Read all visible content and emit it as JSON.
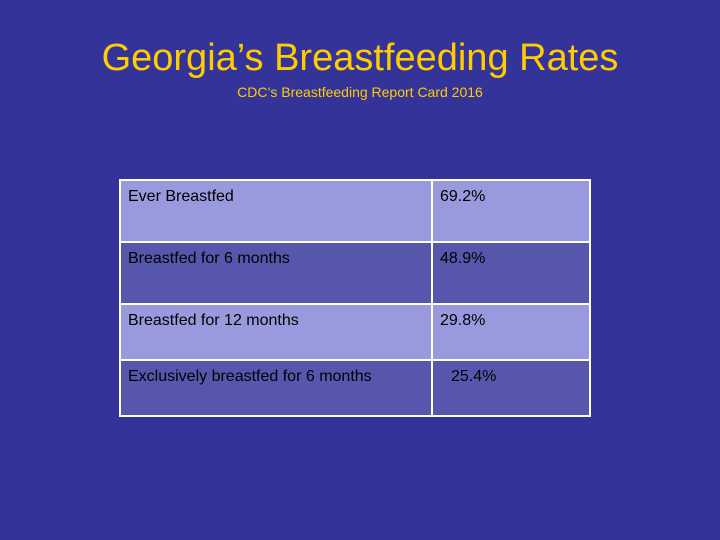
{
  "slide": {
    "title": "Georgia’s Breastfeeding Rates",
    "subtitle": "CDC’s Breastfeeding Report Card 2016"
  },
  "table": {
    "rows": [
      {
        "label": "Ever Breastfed",
        "value": "69.2%"
      },
      {
        "label": "Breastfed for 6 months",
        "value": "48.9%"
      },
      {
        "label": "Breastfed for 12 months",
        "value": "29.8%"
      },
      {
        "label": "Exclusively breastfed for 6 months",
        "value": "25.4%"
      }
    ]
  },
  "colors": {
    "background": "#333399",
    "title": "#ffcc00",
    "row_light": "#9999dd",
    "row_dark": "#5656ad",
    "border": "#ffffff"
  }
}
